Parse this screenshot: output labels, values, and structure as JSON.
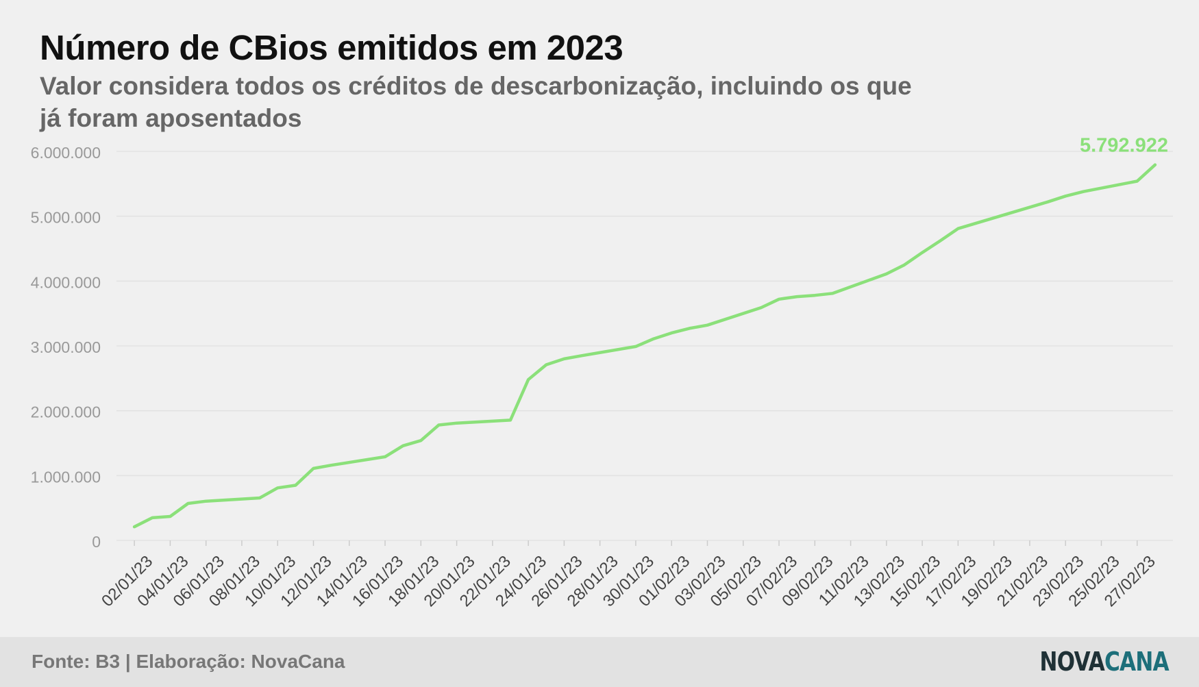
{
  "title": "Número de CBios emitidos em 2023",
  "subtitle": "Valor considera todos os créditos de descarbonização, incluindo os que já foram aposentados",
  "footer": {
    "source": "Fonte: B3 | Elaboração: NovaCana",
    "logo_part1": "NOVA",
    "logo_part2": "CANA"
  },
  "colors": {
    "line": "#8be07a",
    "grid": "#e2e2e2",
    "axis_text": "#999999",
    "x_text": "#444444"
  },
  "chart_data": {
    "type": "line",
    "ylim": [
      0,
      6000000
    ],
    "yticks": [
      0,
      1000000,
      2000000,
      3000000,
      4000000,
      5000000,
      6000000
    ],
    "ytick_labels": [
      "0",
      "1.000.000",
      "2.000.000",
      "3.000.000",
      "4.000.000",
      "5.000.000",
      "6.000.000"
    ],
    "xtick_labels": [
      "02/01/23",
      "04/01/23",
      "06/01/23",
      "08/01/23",
      "10/01/23",
      "12/01/23",
      "14/01/23",
      "16/01/23",
      "18/01/23",
      "20/01/23",
      "22/01/23",
      "24/01/23",
      "26/01/23",
      "28/01/23",
      "30/01/23",
      "01/02/23",
      "03/02/23",
      "05/02/23",
      "07/02/23",
      "09/02/23",
      "11/02/23",
      "13/02/23",
      "15/02/23",
      "17/02/23",
      "19/02/23",
      "21/02/23",
      "23/02/23",
      "25/02/23",
      "27/02/23"
    ],
    "grid": true,
    "x": [
      "02/01/23",
      "03/01/23",
      "04/01/23",
      "05/01/23",
      "06/01/23",
      "09/01/23",
      "10/01/23",
      "11/01/23",
      "12/01/23",
      "13/01/23",
      "16/01/23",
      "17/01/23",
      "18/01/23",
      "19/01/23",
      "20/01/23",
      "23/01/23",
      "24/01/23",
      "25/01/23",
      "26/01/23",
      "27/01/23",
      "30/01/23",
      "31/01/23",
      "01/02/23",
      "02/02/23",
      "03/02/23",
      "06/02/23",
      "07/02/23",
      "08/02/23",
      "09/02/23",
      "10/02/23",
      "13/02/23",
      "14/02/23",
      "15/02/23",
      "16/02/23",
      "17/02/23",
      "22/02/23",
      "23/02/23",
      "24/02/23",
      "27/02/23",
      "28/02/23"
    ],
    "series": [
      {
        "values": [
          210000,
          350000,
          370000,
          570000,
          605000,
          655000,
          810000,
          850000,
          1110000,
          1160000,
          1290000,
          1460000,
          1540000,
          1780000,
          1810000,
          1855000,
          2480000,
          2710000,
          2800000,
          2850000,
          2990000,
          3110000,
          3200000,
          3270000,
          3320000,
          3590000,
          3720000,
          3760000,
          3780000,
          3810000,
          4110000,
          4250000,
          4440000,
          4620000,
          4810000,
          5220000,
          5310000,
          5380000,
          5540000,
          5792922
        ]
      }
    ],
    "annotation": "5.792.922"
  }
}
